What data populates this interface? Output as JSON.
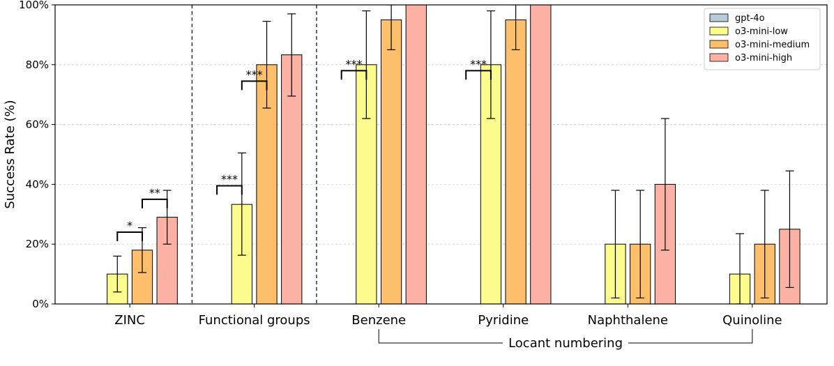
{
  "chart_data": {
    "type": "bar",
    "title": "",
    "xlabel": "",
    "ylabel": "Success Rate (%)",
    "ylim": [
      0,
      100
    ],
    "yticks": [
      "0%",
      "20%",
      "40%",
      "60%",
      "80%",
      "100%"
    ],
    "categories": [
      "ZINC",
      "Functional groups",
      "Benzene",
      "Pyridine",
      "Naphthalene",
      "Quinoline"
    ],
    "grid": "horizontal dashed",
    "legend_position": "top-right",
    "series": [
      {
        "name": "gpt-4o",
        "color": "#b7ccd8",
        "values": [
          0,
          0,
          0,
          0,
          0,
          0
        ],
        "err_low": [
          0,
          0,
          0,
          0,
          0,
          0
        ],
        "err_high": [
          0,
          0,
          0,
          0,
          0,
          0
        ]
      },
      {
        "name": "o3-mini-low",
        "color": "#fbfb8e",
        "values": [
          10,
          33.3,
          80,
          80,
          20,
          10
        ],
        "err_low": [
          4,
          16.3,
          62,
          62,
          2,
          0
        ],
        "err_high": [
          16,
          50.5,
          98,
          98,
          38,
          23.5
        ]
      },
      {
        "name": "o3-mini-medium",
        "color": "#fdbf6b",
        "values": [
          18,
          80,
          95,
          95,
          20,
          20
        ],
        "err_low": [
          10.5,
          65.5,
          85,
          85,
          2,
          2
        ],
        "err_high": [
          25.5,
          94.5,
          100,
          100,
          38,
          38
        ]
      },
      {
        "name": "o3-mini-high",
        "color": "#fbb2a4",
        "values": [
          29,
          83.3,
          100,
          100,
          40,
          25
        ],
        "err_low": [
          20,
          69.5,
          100,
          100,
          18,
          5.5
        ],
        "err_high": [
          38,
          97,
          100,
          100,
          62,
          44.5
        ]
      }
    ],
    "significance": [
      {
        "category": "ZINC",
        "from_series": 1,
        "to_series": 2,
        "label": "*"
      },
      {
        "category": "ZINC",
        "from_series": 2,
        "to_series": 3,
        "label": "**"
      },
      {
        "category": "Functional groups",
        "from_series": 1,
        "to_series": 0,
        "label": "***"
      },
      {
        "category": "Functional groups",
        "from_series": 2,
        "to_series": 1,
        "label": "***"
      },
      {
        "category": "Benzene",
        "from_series": 1,
        "to_series": 0,
        "label": "***"
      },
      {
        "category": "Pyridine",
        "from_series": 1,
        "to_series": 0,
        "label": "***"
      }
    ],
    "group_bracket": {
      "label": "Locant numbering",
      "from": "Benzene",
      "to": "Quinoline"
    },
    "separators_after": [
      "ZINC",
      "Functional groups"
    ]
  }
}
